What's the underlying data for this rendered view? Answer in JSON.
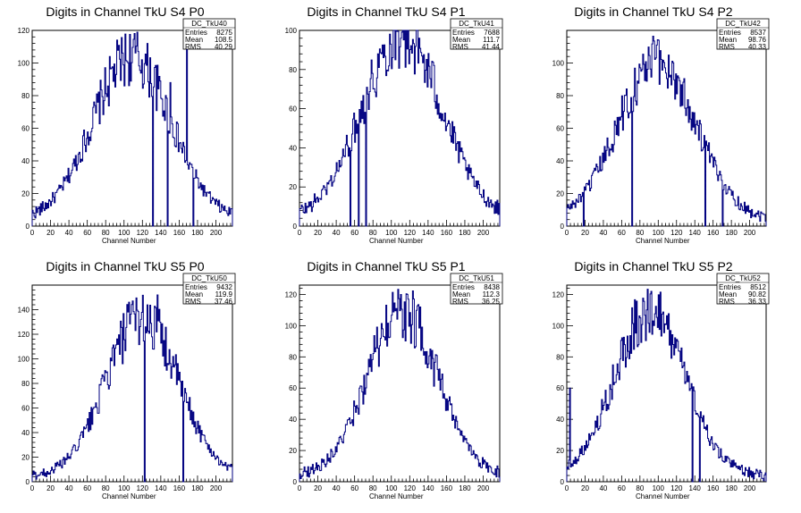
{
  "chart_data": [
    {
      "type": "histogram",
      "title": "Digits in Channel TkU S4 P0",
      "xlabel": "Channel Number",
      "ylabel": "",
      "xlim": [
        0,
        218
      ],
      "ylim": [
        0,
        120
      ],
      "xticks": [
        0,
        20,
        40,
        60,
        80,
        100,
        120,
        140,
        160,
        180,
        200
      ],
      "yticks": [
        0,
        20,
        40,
        60,
        80,
        100,
        120
      ],
      "stats": {
        "name": "DC_TkU40",
        "entries": "8275",
        "mean": "108.5",
        "rms": "40.29"
      },
      "peak": 100,
      "spikes": [
        [
          168,
          115
        ],
        [
          150,
          88
        ],
        [
          131,
          0
        ],
        [
          147,
          0
        ],
        [
          175,
          0
        ]
      ],
      "series_color": "#000080"
    },
    {
      "type": "histogram",
      "title": "Digits in Channel TkU S4 P1",
      "xlabel": "Channel Number",
      "ylabel": "",
      "xlim": [
        0,
        218
      ],
      "ylim": [
        0,
        100
      ],
      "xticks": [
        0,
        20,
        40,
        60,
        80,
        100,
        120,
        140,
        160,
        180,
        200
      ],
      "yticks": [
        0,
        20,
        40,
        60,
        80,
        100
      ],
      "stats": {
        "name": "DC_TkU41",
        "entries": "7688",
        "mean": "111.7",
        "rms": "41.44"
      },
      "peak": 93,
      "spikes": [
        [
          64,
          0
        ],
        [
          72,
          0
        ],
        [
          55,
          0
        ],
        [
          110,
          96
        ],
        [
          130,
          96
        ]
      ],
      "series_color": "#000080"
    },
    {
      "type": "histogram",
      "title": "Digits in Channel TkU S4 P2",
      "xlabel": "Channel Number",
      "ylabel": "",
      "xlim": [
        0,
        218
      ],
      "ylim": [
        0,
        120
      ],
      "xticks": [
        0,
        20,
        40,
        60,
        80,
        100,
        120,
        140,
        160,
        180,
        200
      ],
      "yticks": [
        0,
        20,
        40,
        60,
        80,
        100
      ],
      "stats": {
        "name": "DC_TkU42",
        "entries": "8537",
        "mean": "98.76",
        "rms": "40.33"
      },
      "peak": 97,
      "spikes": [
        [
          100,
          114
        ],
        [
          71,
          0
        ],
        [
          18,
          0
        ],
        [
          151,
          0
        ],
        [
          170,
          0
        ]
      ],
      "series_color": "#000080"
    },
    {
      "type": "histogram",
      "title": "Digits in Channel TkU S5 P0",
      "xlabel": "Channel Number",
      "ylabel": "",
      "xlim": [
        0,
        218
      ],
      "ylim": [
        0,
        160
      ],
      "xticks": [
        0,
        20,
        40,
        60,
        80,
        100,
        120,
        140,
        160,
        180,
        200
      ],
      "yticks": [
        0,
        20,
        40,
        60,
        80,
        100,
        120,
        140
      ],
      "stats": {
        "name": "DC_TkU50",
        "entries": "9432",
        "mean": "119.9",
        "rms": "37.46"
      },
      "peak": 130,
      "spikes": [
        [
          136,
          152
        ],
        [
          122,
          0
        ],
        [
          164,
          0
        ]
      ],
      "series_color": "#000080"
    },
    {
      "type": "histogram",
      "title": "Digits in Channel TkU S5 P1",
      "xlabel": "Channel Number",
      "ylabel": "",
      "xlim": [
        0,
        218
      ],
      "ylim": [
        0,
        126
      ],
      "xticks": [
        0,
        20,
        40,
        60,
        80,
        100,
        120,
        140,
        160,
        180,
        200
      ],
      "yticks": [
        0,
        20,
        40,
        60,
        80,
        100,
        120
      ],
      "stats": {
        "name": "DC_TkU51",
        "entries": "8438",
        "mean": "112.3",
        "rms": "36.25"
      },
      "peak": 105,
      "spikes": [
        [
          110,
          120
        ],
        [
          118,
          117
        ],
        [
          131,
          112
        ]
      ],
      "series_color": "#000080"
    },
    {
      "type": "histogram",
      "title": "Digits in Channel TkU S5 P2",
      "xlabel": "Channel Number",
      "ylabel": "",
      "xlim": [
        0,
        218
      ],
      "ylim": [
        0,
        126
      ],
      "xticks": [
        0,
        20,
        40,
        60,
        80,
        100,
        120,
        140,
        160,
        180,
        200
      ],
      "yticks": [
        0,
        20,
        40,
        60,
        80,
        100,
        120
      ],
      "stats": {
        "name": "DC_TkU52",
        "entries": "8512",
        "mean": "90.82",
        "rms": "36.33"
      },
      "peak": 105,
      "spikes": [
        [
          92,
          122
        ],
        [
          3,
          60
        ],
        [
          145,
          0
        ],
        [
          137,
          0
        ]
      ],
      "series_color": "#000080"
    }
  ],
  "stat_labels": {
    "entries": "Entries",
    "mean": "Mean",
    "rms": "RMS"
  }
}
